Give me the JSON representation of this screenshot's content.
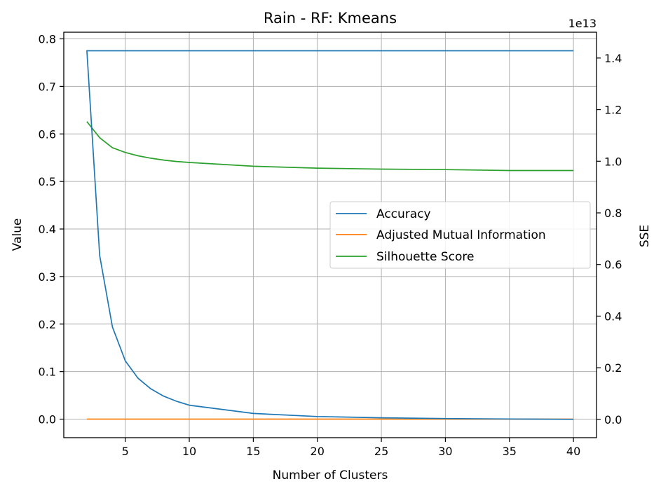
{
  "chart_data": {
    "type": "line",
    "title": "Rain - RF: Kmeans",
    "xlabel": "Number of Clusters",
    "ylabel": "Value",
    "y2label": "SSE",
    "y2_offset_text": "1e13",
    "grid": true,
    "legend_position": "center-right",
    "xlim": [
      0.2,
      41.8
    ],
    "ylim": [
      -0.039,
      0.814
    ],
    "y2lim": [
      -0.071,
      1.5
    ],
    "xticks": [
      5,
      10,
      15,
      20,
      25,
      30,
      35,
      40
    ],
    "yticks": [
      0.0,
      0.1,
      0.2,
      0.3,
      0.4,
      0.5,
      0.6,
      0.7,
      0.8
    ],
    "yticklabels": [
      "0.0",
      "0.1",
      "0.2",
      "0.3",
      "0.4",
      "0.5",
      "0.6",
      "0.7",
      "0.8"
    ],
    "y2ticks": [
      0.0,
      0.2,
      0.4,
      0.6,
      0.8,
      1.0,
      1.2,
      1.4
    ],
    "y2ticklabels": [
      "0.0",
      "0.2",
      "0.4",
      "0.6",
      "0.8",
      "1.0",
      "1.2",
      "1.4"
    ],
    "series": [
      {
        "name": "Accuracy",
        "axis": "left",
        "color": "#1f77b4",
        "x": [
          2,
          3,
          4,
          5,
          6,
          7,
          8,
          9,
          10,
          15,
          20,
          25,
          30,
          35,
          40
        ],
        "values": [
          0.775,
          0.775,
          0.775,
          0.775,
          0.775,
          0.775,
          0.775,
          0.775,
          0.775,
          0.775,
          0.775,
          0.775,
          0.775,
          0.775,
          0.775
        ]
      },
      {
        "name": "Adjusted Mutual Information",
        "axis": "left",
        "color": "#ff7f0e",
        "x": [
          2,
          3,
          4,
          5,
          6,
          7,
          8,
          9,
          10,
          15,
          20,
          25,
          30,
          35,
          40
        ],
        "values": [
          0.0,
          0.0,
          0.0,
          0.0,
          0.0,
          0.0,
          0.0,
          0.0,
          0.0,
          0.0,
          0.0,
          0.0,
          0.0,
          0.0,
          0.0
        ]
      },
      {
        "name": "Silhouette Score",
        "axis": "left",
        "color": "#2ca02c",
        "x": [
          2,
          3,
          4,
          5,
          6,
          7,
          8,
          9,
          10,
          15,
          20,
          25,
          30,
          35,
          40
        ],
        "values": [
          0.626,
          0.592,
          0.571,
          0.561,
          0.554,
          0.549,
          0.545,
          0.542,
          0.54,
          0.532,
          0.528,
          0.526,
          0.525,
          0.523,
          0.523
        ]
      },
      {
        "axis": "right",
        "color": "#1f77b4",
        "x": [
          2,
          3,
          4,
          5,
          6,
          7,
          8,
          9,
          10,
          15,
          20,
          25,
          30,
          35,
          40
        ],
        "values": [
          1.43,
          0.635,
          0.358,
          0.227,
          0.159,
          0.118,
          0.09,
          0.07,
          0.055,
          0.023,
          0.011,
          0.006,
          0.003,
          0.0015,
          0.0002
        ]
      }
    ]
  }
}
